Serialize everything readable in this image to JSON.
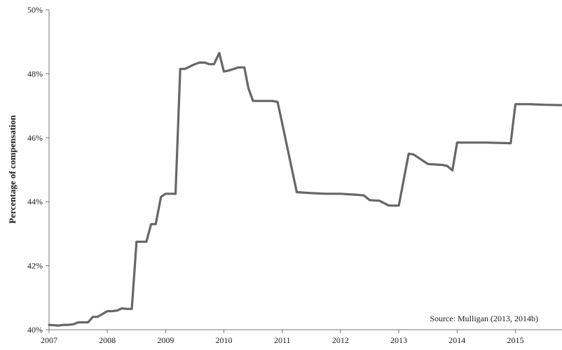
{
  "chart_data": {
    "type": "line",
    "title": "",
    "xlabel": "",
    "ylabel": "Percentage of compensation",
    "xlim": [
      2007,
      2015.8
    ],
    "ylim": [
      40,
      50
    ],
    "y_ticks": [
      {
        "value": 40,
        "label": "40%"
      },
      {
        "value": 42,
        "label": "42%"
      },
      {
        "value": 44,
        "label": "44%"
      },
      {
        "value": 46,
        "label": "46%"
      },
      {
        "value": 48,
        "label": "48%"
      },
      {
        "value": 50,
        "label": "50%"
      }
    ],
    "x_ticks": [
      {
        "value": 2007,
        "label": "2007"
      },
      {
        "value": 2008,
        "label": "2008"
      },
      {
        "value": 2009,
        "label": "2009"
      },
      {
        "value": 2010,
        "label": "2010"
      },
      {
        "value": 2011,
        "label": "2011"
      },
      {
        "value": 2012,
        "label": "2012"
      },
      {
        "value": 2013,
        "label": "2013"
      },
      {
        "value": 2014,
        "label": "2014"
      },
      {
        "value": 2015,
        "label": "2015"
      }
    ],
    "grid": false,
    "legend": false,
    "line_color": "#666666",
    "annotation": "Source: Mulligan (2013, 2014b)",
    "series": [
      {
        "x": [
          2007.0,
          2007.17,
          2007.25,
          2007.33,
          2007.42,
          2007.5,
          2007.58,
          2007.67,
          2007.75,
          2007.83,
          2008.0,
          2008.08,
          2008.17,
          2008.25,
          2008.33,
          2008.42,
          2008.5,
          2008.55,
          2008.67,
          2008.75,
          2008.83,
          2008.92,
          2009.0,
          2009.08,
          2009.17,
          2009.25,
          2009.33,
          2009.5,
          2009.58,
          2009.67,
          2009.75,
          2009.83,
          2009.92,
          2010.0,
          2010.08,
          2010.25,
          2010.35,
          2010.42,
          2010.5,
          2010.75,
          2010.83,
          2010.92,
          2011.0,
          2011.25,
          2011.5,
          2011.75,
          2012.0,
          2012.25,
          2012.4,
          2012.5,
          2012.67,
          2012.83,
          2013.0,
          2013.17,
          2013.25,
          2013.5,
          2013.75,
          2013.83,
          2013.92,
          2014.0,
          2014.5,
          2014.92,
          2015.0,
          2015.25,
          2015.5,
          2015.8
        ],
        "values": [
          40.15,
          40.13,
          40.15,
          40.15,
          40.17,
          40.23,
          40.23,
          40.23,
          40.4,
          40.4,
          40.58,
          40.58,
          40.6,
          40.67,
          40.65,
          40.65,
          42.75,
          42.75,
          42.75,
          43.3,
          43.3,
          44.15,
          44.25,
          44.25,
          44.25,
          48.15,
          48.15,
          48.3,
          48.35,
          48.35,
          48.3,
          48.3,
          48.65,
          48.07,
          48.1,
          48.2,
          48.2,
          47.55,
          47.15,
          47.15,
          47.15,
          47.12,
          46.45,
          44.3,
          44.27,
          44.25,
          44.25,
          44.22,
          44.2,
          44.05,
          44.03,
          43.88,
          43.88,
          45.5,
          45.48,
          45.18,
          45.15,
          45.12,
          44.98,
          45.85,
          45.85,
          45.83,
          47.05,
          47.05,
          47.03,
          47.02
        ]
      }
    ]
  }
}
